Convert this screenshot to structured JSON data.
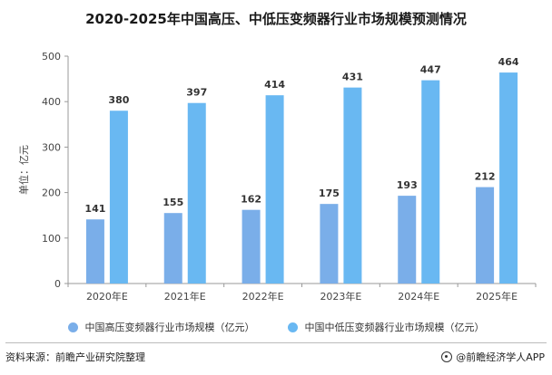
{
  "title": "2020-2025年中国高压、中低压变频器行业市场规模预测情况",
  "ylabel": "单位：亿元",
  "source": "资料来源：前瞻产业研究院整理",
  "brand": "@前瞻经济学人APP",
  "colors": {
    "high": "#7aaee9",
    "midlow": "#69b8f2"
  },
  "chart_data": {
    "type": "bar",
    "title": "2020-2025年中国高压、中低压变频器行业市场规模预测情况",
    "xlabel": "",
    "ylabel": "单位：亿元",
    "categories": [
      "2020年E",
      "2021年E",
      "2022年E",
      "2023年E",
      "2024年E",
      "2025年E"
    ],
    "series": [
      {
        "name": "中国高压变频器行业市场规模（亿元）",
        "values": [
          141,
          155,
          162,
          175,
          193,
          212
        ]
      },
      {
        "name": "中国中低压变频器行业市场规模（亿元）",
        "values": [
          380,
          397,
          414,
          431,
          447,
          464
        ]
      }
    ],
    "ylim": [
      0,
      500
    ],
    "yticks": [
      0,
      100,
      200,
      300,
      400,
      500
    ],
    "grid": false,
    "legend": "bottom"
  }
}
